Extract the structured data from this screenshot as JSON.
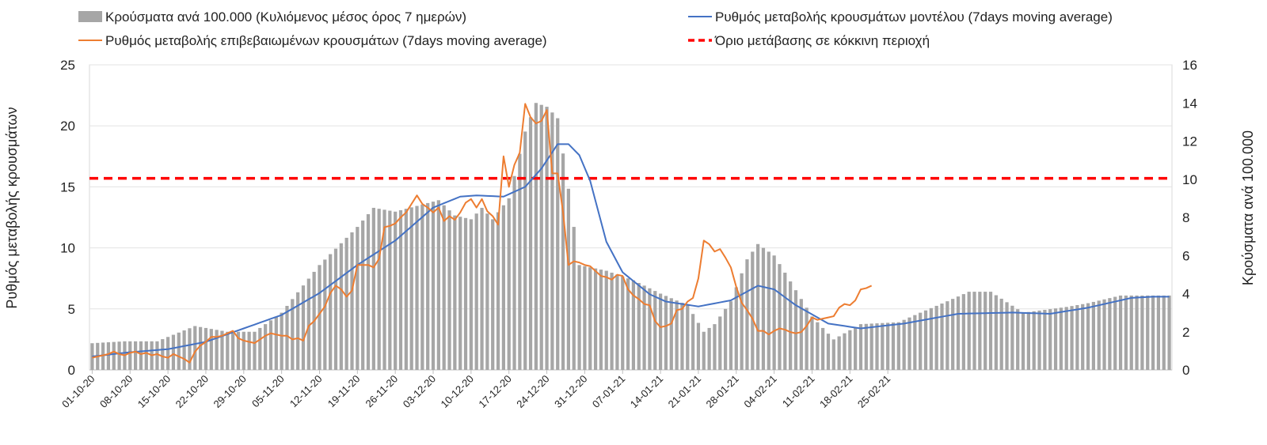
{
  "chart_data": {
    "type": "bar+line",
    "title": "",
    "left_axis": {
      "label": "Ρυθμός μεταβολής κρουσμάτων",
      "range": [
        0,
        25
      ],
      "ticks": [
        0,
        5,
        10,
        15,
        20,
        25
      ]
    },
    "right_axis": {
      "label": "Κρούσματα ανά 100.000",
      "range": [
        0,
        16
      ],
      "ticks": [
        0,
        2,
        4,
        6,
        8,
        10,
        12,
        14,
        16
      ]
    },
    "grid": true,
    "legend": {
      "placement": "top",
      "bars": "Κρούσματα ανά 100.000 (Κυλιόμενος μέσος όρος 7 ημερών)",
      "model": "Ρυθμός μεταβολής κρουσμάτων μοντέλου (7days moving average)",
      "confirmed": "Ρυθμός μεταβολής επιβεβαιωμένων κρουσμάτων (7days moving average)",
      "threshold": "Όριο μετάβασης σε κόκκινη περιοχή"
    },
    "x_tick_labels": [
      "01-10-20",
      "08-10-20",
      "15-10-20",
      "22-10-20",
      "29-10-20",
      "05-11-20",
      "12-11-20",
      "19-11-20",
      "26-11-20",
      "03-12-20",
      "10-12-20",
      "17-12-20",
      "24-12-20",
      "31-12-20",
      "07-01-21",
      "14-01-21",
      "21-01-21",
      "28-01-21",
      "04-02-21",
      "11-02-21",
      "18-02-21",
      "25-02-21"
    ],
    "bar_keypoints": [
      [
        0,
        1.4
      ],
      [
        6,
        1.5
      ],
      [
        12,
        1.5
      ],
      [
        19,
        2.3
      ],
      [
        25,
        2.0
      ],
      [
        30,
        2.0
      ],
      [
        35,
        3.0
      ],
      [
        42,
        5.5
      ],
      [
        49,
        7.5
      ],
      [
        52,
        8.5
      ],
      [
        56,
        8.3
      ],
      [
        60,
        8.6
      ],
      [
        64,
        8.9
      ],
      [
        67,
        8.1
      ],
      [
        70,
        7.9
      ],
      [
        72,
        8.5
      ],
      [
        74,
        7.9
      ],
      [
        77,
        9.0
      ],
      [
        80,
        12.5
      ],
      [
        82,
        14.0
      ],
      [
        84,
        13.8
      ],
      [
        86,
        13.2
      ],
      [
        88,
        9.5
      ],
      [
        90,
        5.5
      ],
      [
        95,
        5.2
      ],
      [
        100,
        4.7
      ],
      [
        105,
        4.0
      ],
      [
        110,
        3.4
      ],
      [
        113,
        2.0
      ],
      [
        115,
        2.4
      ],
      [
        118,
        3.6
      ],
      [
        121,
        5.8
      ],
      [
        123,
        6.6
      ],
      [
        126,
        6.0
      ],
      [
        128,
        5.1
      ],
      [
        133,
        2.8
      ],
      [
        137,
        1.6
      ],
      [
        142,
        2.4
      ],
      [
        149,
        2.5
      ],
      [
        153,
        3.0
      ],
      [
        158,
        3.6
      ],
      [
        162,
        4.1
      ],
      [
        166,
        4.1
      ],
      [
        172,
        3.0
      ],
      [
        180,
        3.3
      ],
      [
        184,
        3.5
      ],
      [
        190,
        3.9
      ],
      [
        193,
        3.9
      ],
      [
        198,
        3.9
      ]
    ],
    "model_keypoints": [
      [
        0,
        1.1
      ],
      [
        7,
        1.45
      ],
      [
        14,
        1.7
      ],
      [
        21,
        2.3
      ],
      [
        28,
        3.4
      ],
      [
        35,
        4.5
      ],
      [
        42,
        6.3
      ],
      [
        49,
        8.6
      ],
      [
        56,
        10.6
      ],
      [
        63,
        13.3
      ],
      [
        68,
        14.2
      ],
      [
        71,
        14.3
      ],
      [
        76,
        14.2
      ],
      [
        80,
        15.0
      ],
      [
        83,
        16.5
      ],
      [
        86,
        18.5
      ],
      [
        88,
        18.5
      ],
      [
        90,
        17.6
      ],
      [
        92,
        15.5
      ],
      [
        95,
        10.5
      ],
      [
        98,
        8.0
      ],
      [
        103,
        6.2
      ],
      [
        106,
        5.6
      ],
      [
        112,
        5.2
      ],
      [
        118,
        5.7
      ],
      [
        123,
        6.9
      ],
      [
        126,
        6.6
      ],
      [
        130,
        5.3
      ],
      [
        136,
        3.8
      ],
      [
        142,
        3.4
      ],
      [
        150,
        3.8
      ],
      [
        160,
        4.6
      ],
      [
        170,
        4.7
      ],
      [
        177,
        4.6
      ],
      [
        184,
        5.1
      ],
      [
        192,
        5.9
      ],
      [
        196,
        6.0
      ],
      [
        199,
        6.0
      ]
    ],
    "confirmed_points": [
      [
        0,
        1.0
      ],
      [
        1,
        1.1
      ],
      [
        2,
        1.2
      ],
      [
        3,
        1.3
      ],
      [
        4,
        1.5
      ],
      [
        5,
        1.3
      ],
      [
        6,
        1.2
      ],
      [
        7,
        1.4
      ],
      [
        8,
        1.5
      ],
      [
        9,
        1.3
      ],
      [
        10,
        1.4
      ],
      [
        11,
        1.2
      ],
      [
        12,
        1.3
      ],
      [
        13,
        1.1
      ],
      [
        14,
        1.0
      ],
      [
        15,
        1.3
      ],
      [
        16,
        1.1
      ],
      [
        17,
        0.9
      ],
      [
        18,
        0.6
      ],
      [
        19,
        1.5
      ],
      [
        20,
        2.0
      ],
      [
        21,
        2.3
      ],
      [
        22,
        2.7
      ],
      [
        23,
        2.7
      ],
      [
        24,
        2.8
      ],
      [
        25,
        3.0
      ],
      [
        26,
        3.2
      ],
      [
        27,
        2.6
      ],
      [
        28,
        2.4
      ],
      [
        29,
        2.3
      ],
      [
        30,
        2.2
      ],
      [
        31,
        2.5
      ],
      [
        32,
        2.8
      ],
      [
        33,
        3.0
      ],
      [
        34,
        2.9
      ],
      [
        35,
        2.8
      ],
      [
        36,
        2.8
      ],
      [
        37,
        2.5
      ],
      [
        38,
        2.6
      ],
      [
        39,
        2.4
      ],
      [
        40,
        3.6
      ],
      [
        41,
        4.0
      ],
      [
        42,
        4.6
      ],
      [
        43,
        5.2
      ],
      [
        44,
        6.3
      ],
      [
        45,
        6.9
      ],
      [
        46,
        6.6
      ],
      [
        47,
        6.0
      ],
      [
        48,
        6.5
      ],
      [
        49,
        8.6
      ],
      [
        50,
        8.6
      ],
      [
        51,
        8.6
      ],
      [
        52,
        8.4
      ],
      [
        53,
        9.1
      ],
      [
        54,
        11.7
      ],
      [
        55,
        11.8
      ],
      [
        56,
        12.0
      ],
      [
        57,
        12.5
      ],
      [
        58,
        12.9
      ],
      [
        59,
        13.6
      ],
      [
        60,
        14.3
      ],
      [
        61,
        13.6
      ],
      [
        62,
        13.3
      ],
      [
        63,
        12.9
      ],
      [
        64,
        13.3
      ],
      [
        65,
        12.2
      ],
      [
        66,
        12.6
      ],
      [
        67,
        12.3
      ],
      [
        68,
        12.9
      ],
      [
        69,
        13.7
      ],
      [
        70,
        14.0
      ],
      [
        71,
        13.3
      ],
      [
        72,
        14.0
      ],
      [
        73,
        13.0
      ],
      [
        74,
        12.6
      ],
      [
        75,
        11.9
      ],
      [
        76,
        17.5
      ],
      [
        77,
        15.0
      ],
      [
        78,
        16.8
      ],
      [
        79,
        17.8
      ],
      [
        80,
        21.8
      ],
      [
        81,
        20.7
      ],
      [
        82,
        20.2
      ],
      [
        83,
        20.4
      ],
      [
        84,
        21.3
      ],
      [
        85,
        16.1
      ],
      [
        86,
        16.1
      ],
      [
        87,
        12.9
      ],
      [
        88,
        8.6
      ],
      [
        89,
        8.9
      ],
      [
        90,
        8.8
      ],
      [
        91,
        8.6
      ],
      [
        92,
        8.5
      ],
      [
        93,
        8.1
      ],
      [
        94,
        7.7
      ],
      [
        95,
        7.6
      ],
      [
        96,
        7.4
      ],
      [
        97,
        7.8
      ],
      [
        98,
        7.7
      ],
      [
        99,
        6.6
      ],
      [
        100,
        6.1
      ],
      [
        101,
        5.8
      ],
      [
        102,
        5.4
      ],
      [
        103,
        5.3
      ],
      [
        104,
        4.0
      ],
      [
        105,
        3.5
      ],
      [
        106,
        3.6
      ],
      [
        107,
        3.8
      ],
      [
        108,
        4.9
      ],
      [
        109,
        5.0
      ],
      [
        110,
        5.6
      ],
      [
        111,
        5.9
      ],
      [
        112,
        7.5
      ],
      [
        113,
        10.6
      ],
      [
        114,
        10.3
      ],
      [
        115,
        9.7
      ],
      [
        116,
        9.9
      ],
      [
        117,
        9.2
      ],
      [
        118,
        8.4
      ],
      [
        119,
        6.8
      ],
      [
        120,
        5.5
      ],
      [
        121,
        4.9
      ],
      [
        122,
        4.2
      ],
      [
        123,
        3.2
      ],
      [
        124,
        3.2
      ],
      [
        125,
        2.9
      ],
      [
        126,
        3.2
      ],
      [
        127,
        3.4
      ],
      [
        128,
        3.3
      ],
      [
        129,
        3.1
      ],
      [
        130,
        3.0
      ],
      [
        131,
        3.1
      ],
      [
        132,
        3.6
      ],
      [
        133,
        4.3
      ],
      [
        134,
        4.1
      ],
      [
        135,
        4.2
      ],
      [
        136,
        4.3
      ],
      [
        137,
        4.4
      ],
      [
        138,
        5.1
      ],
      [
        139,
        5.4
      ],
      [
        140,
        5.3
      ],
      [
        141,
        5.7
      ],
      [
        142,
        6.6
      ],
      [
        143,
        6.7
      ],
      [
        144,
        6.9
      ]
    ],
    "threshold_value": 15.7
  }
}
